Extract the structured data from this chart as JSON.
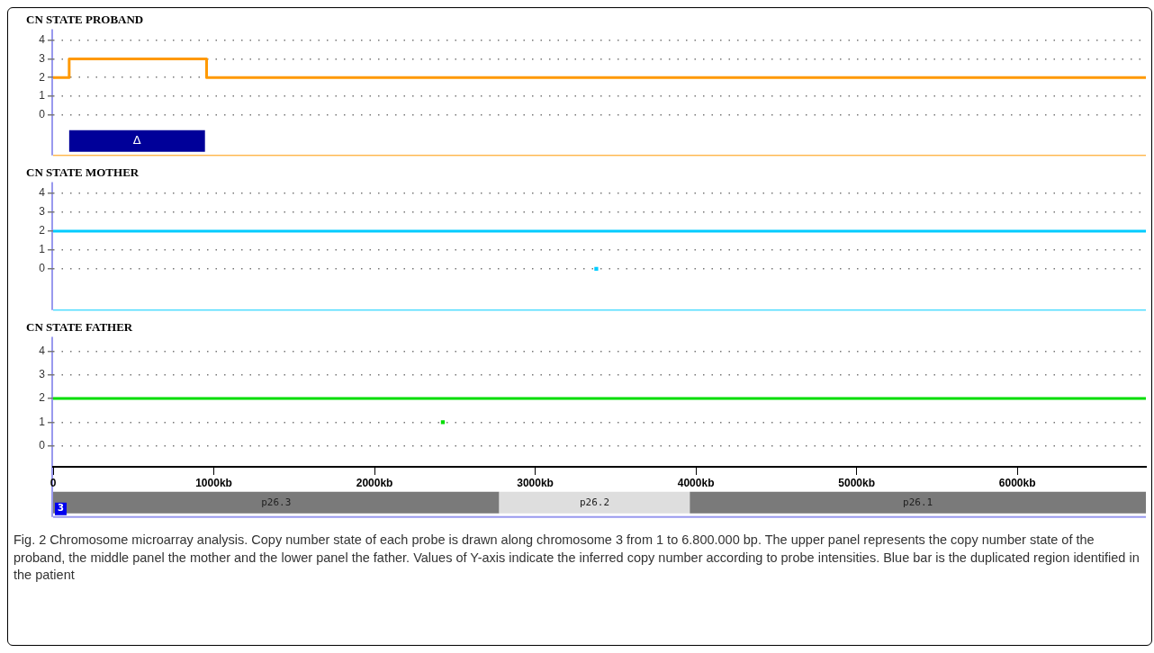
{
  "chart_data": [
    {
      "type": "step",
      "title": "CN STATE PROBAND",
      "xlim": [
        0,
        6800
      ],
      "ylim": [
        -2.2,
        4.6
      ],
      "yticks": [
        0,
        1,
        2,
        3,
        4
      ],
      "grid": "y",
      "tick_labels": "y",
      "marker": "none",
      "series": [
        {
          "color": "#ff9900",
          "x": [
            0,
            100,
            955,
            6800
          ],
          "values": [
            2,
            3,
            2,
            2
          ]
        }
      ],
      "bands": [
        {
          "axis": "x",
          "from": 100,
          "to": 945,
          "label": "Δ",
          "color": "#000099"
        }
      ]
    },
    {
      "type": "step",
      "title": "CN STATE MOTHER",
      "xlim": [
        0,
        6800
      ],
      "ylim": [
        -2.2,
        4.6
      ],
      "yticks": [
        0,
        1,
        2,
        3,
        4
      ],
      "grid": "y",
      "tick_labels": "y",
      "marker": "none",
      "series": [
        {
          "color": "#00ccff",
          "x": [
            0,
            6800
          ],
          "values": [
            2,
            2
          ]
        },
        {
          "type": "scatter",
          "marker": "square",
          "color": "#00ccff",
          "x": [
            3380
          ],
          "values": [
            0
          ]
        }
      ]
    },
    {
      "type": "step",
      "title": "CN STATE FATHER",
      "xlabel": "3",
      "xlim": [
        0,
        6800
      ],
      "ylim": [
        -3,
        4.6
      ],
      "yticks": [
        0,
        1,
        2,
        3,
        4
      ],
      "grid": "y",
      "marker": "none",
      "xticks": [
        {
          "value": 0,
          "label": "0"
        },
        {
          "value": 1000,
          "label": "1000kb"
        },
        {
          "value": 2000,
          "label": "2000kb"
        },
        {
          "value": 3000,
          "label": "3000kb"
        },
        {
          "value": 4000,
          "label": "4000kb"
        },
        {
          "value": 5000,
          "label": "5000kb"
        },
        {
          "value": 6000,
          "label": "6000kb"
        }
      ],
      "series": [
        {
          "color": "#00dd00",
          "x": [
            0,
            6800
          ],
          "values": [
            2,
            2
          ]
        },
        {
          "type": "scatter",
          "marker": "square",
          "color": "#00dd00",
          "x": [
            2425
          ],
          "values": [
            1
          ]
        }
      ],
      "bands": [
        {
          "axis": "x",
          "from": 0,
          "to": 2776,
          "label": "p26.3",
          "color": "#7a7a7a"
        },
        {
          "axis": "x",
          "from": 2776,
          "to": 3962,
          "label": "p26.2",
          "color": "#dedede"
        },
        {
          "axis": "x",
          "from": 3962,
          "to": 6800,
          "label": "p26.1",
          "color": "#7a7a7a"
        }
      ],
      "annotations": [
        "Fig. 2 Chromosome microarray analysis. Copy number state of each probe is drawn along chromosome 3 from 1 to 6.800.000 bp. The upper panel represents the copy number state of the proband, the middle panel the mother and the lower panel the father. Values of Y-axis indicate the inferred copy number according to probe intensities. Blue bar is the duplicated region identified in the patient"
      ]
    }
  ]
}
